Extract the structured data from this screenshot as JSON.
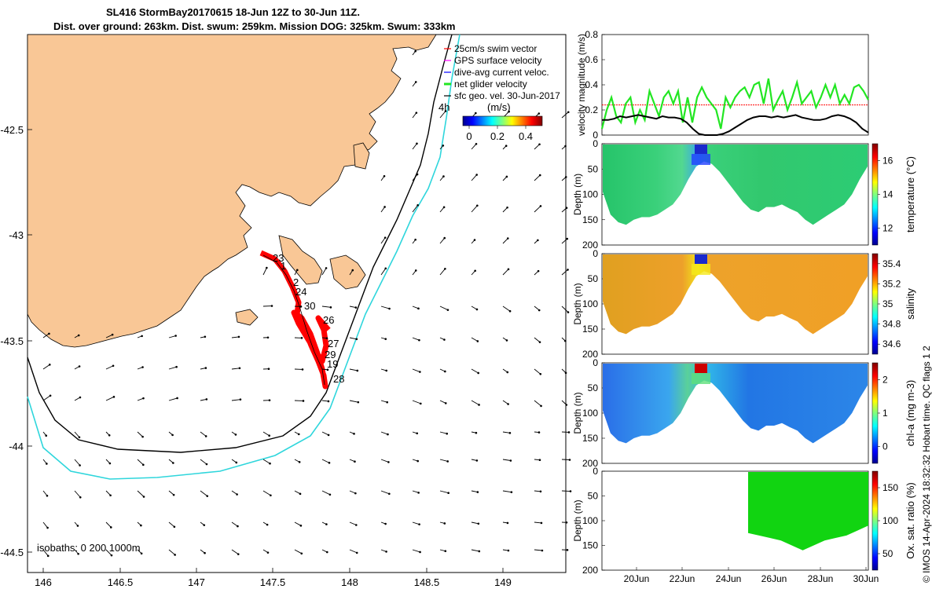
{
  "header": {
    "line1": "SL416 StormBay20170615 18-Jun 12Z to 30-Jun 11Z.",
    "line2": "Dist. over ground: 263km. Dist. swum: 259km. Mission DOG: 325km. Swum: 333km"
  },
  "side_note": "© IMOS 14-Apr-2024 18:32:32 Hobart time. QC flags 1  2",
  "colors": {
    "land": "#f9c796",
    "track": "#ff0000",
    "net_glider": "#22e622",
    "black_line": "#000000",
    "isobath_200": "#000000",
    "isobath_1000": "#2fd6dc",
    "oxygen_fill": "#11d411"
  },
  "map": {
    "x_ticks": [
      "146",
      "146.5",
      "147",
      "147.5",
      "148",
      "148.5",
      "149"
    ],
    "y_ticks": [
      "-42.5",
      "-43",
      "-43.5",
      "-44",
      "-44.5"
    ],
    "isobaths_label": "isobaths: 0   200  1000m",
    "speed_label": "4h",
    "colorbar_unit": "(m/s)",
    "colorbar_ticks": [
      "0",
      "0.2",
      "0.4"
    ],
    "legend": [
      {
        "label": "25cm/s swim vector",
        "color": "#ff0000"
      },
      {
        "label": "GPS surface velocity",
        "color": "#ff00ff"
      },
      {
        "label": "dive-avg current veloc.",
        "color": "#0000ff"
      },
      {
        "label": "net glider velocity",
        "color": "#22e622"
      },
      {
        "label": "sfc geo. vel. 30-Jun-2017",
        "color": "#000000"
      }
    ],
    "day_labels": [
      "23",
      "1",
      "2",
      "24",
      "30",
      "26",
      "27",
      "29",
      "19",
      "28"
    ]
  },
  "chart_data": [
    {
      "type": "line",
      "title": "",
      "ylabel": "velocity magnitude (m/s)",
      "ylim": [
        0,
        0.8
      ],
      "y_ticks": [
        "0",
        "0.2",
        "0.4",
        "0.6",
        "0.8"
      ],
      "x_ticks": [
        "20Jun",
        "22Jun",
        "24Jun",
        "26Jun",
        "28Jun",
        "30Jun"
      ],
      "x_range": [
        "18-Jun",
        "30-Jun"
      ],
      "series": [
        {
          "values": [
            0.05,
            0.2,
            0.3,
            0.15,
            0.1,
            0.25,
            0.3,
            0.1,
            0.2,
            0.12,
            0.35,
            0.25,
            0.15,
            0.3,
            0.35,
            0.25,
            0.35,
            0.1,
            0.3,
            0.1,
            0.3,
            0.38,
            0.3,
            0.25,
            0.2,
            0.05,
            0.3,
            0.22,
            0.3,
            0.35,
            0.38,
            0.3,
            0.4,
            0.42,
            0.25,
            0.45,
            0.2,
            0.28,
            0.35,
            0.2,
            0.3,
            0.42,
            0.25,
            0.3,
            0.35,
            0.22,
            0.3,
            0.4,
            0.3,
            0.4,
            0.25,
            0.32,
            0.25,
            0.38,
            0.4,
            0.35,
            0.28
          ]
        },
        {
          "values": [
            0.12,
            0.12,
            0.13,
            0.15,
            0.14,
            0.15,
            0.16,
            0.15,
            0.14,
            0.13,
            0.15,
            0.14,
            0.14,
            0.13,
            0.1,
            0.05,
            0.01,
            0.0,
            0.0,
            0.0,
            0.01,
            0.03,
            0.06,
            0.09,
            0.12,
            0.14,
            0.15,
            0.15,
            0.14,
            0.15,
            0.14,
            0.15,
            0.16,
            0.14,
            0.13,
            0.12,
            0.12,
            0.13,
            0.15,
            0.16,
            0.15,
            0.13,
            0.1,
            0.05,
            0.02
          ]
        },
        {
          "values": [
            0.24
          ]
        }
      ]
    },
    {
      "type": "heatmap",
      "ylabel": "Depth (m)",
      "colorbar_label": "temperature (°C)",
      "colorbar_ticks": [
        "12",
        "14",
        "16"
      ],
      "y_ticks": [
        "0",
        "50",
        "100",
        "150",
        "200"
      ],
      "depth_profile_m": [
        95,
        140,
        155,
        160,
        150,
        145,
        145,
        140,
        130,
        120,
        100,
        70,
        45,
        35,
        40,
        55,
        75,
        95,
        115,
        130,
        135,
        125,
        125,
        120,
        128,
        135,
        150,
        160,
        150,
        140,
        130,
        120,
        100,
        70,
        45
      ]
    },
    {
      "type": "heatmap",
      "ylabel": "Depth (m)",
      "colorbar_label": "salinity",
      "colorbar_ticks": [
        "34.6",
        "34.8",
        "35",
        "35.2",
        "35.4"
      ],
      "y_ticks": [
        "0",
        "50",
        "100",
        "150",
        "200"
      ],
      "depth_profile_m": [
        95,
        140,
        155,
        160,
        150,
        145,
        145,
        140,
        130,
        120,
        100,
        70,
        45,
        35,
        40,
        55,
        75,
        95,
        115,
        130,
        135,
        125,
        125,
        120,
        128,
        135,
        150,
        160,
        150,
        140,
        130,
        120,
        100,
        70,
        45
      ]
    },
    {
      "type": "heatmap",
      "ylabel": "Depth (m)",
      "colorbar_label": "chl-a (mg m-3)",
      "colorbar_ticks": [
        "0",
        "1",
        "2"
      ],
      "y_ticks": [
        "0",
        "50",
        "100",
        "150",
        "200"
      ],
      "depth_profile_m": [
        95,
        140,
        155,
        160,
        150,
        145,
        145,
        140,
        130,
        120,
        100,
        70,
        45,
        35,
        40,
        55,
        75,
        95,
        115,
        130,
        135,
        125,
        125,
        120,
        128,
        135,
        150,
        160,
        150,
        140,
        130,
        120,
        100,
        70,
        45
      ]
    },
    {
      "type": "heatmap",
      "ylabel": "Depth (m)",
      "colorbar_label": "Ox. sat. ratio (%)",
      "colorbar_ticks": [
        "50",
        "100",
        "150"
      ],
      "y_ticks": [
        "0",
        "50",
        "100",
        "150",
        "200"
      ],
      "x_ticks": [
        "20Jun",
        "22Jun",
        "24Jun",
        "26Jun",
        "28Jun",
        "30Jun"
      ],
      "depth_profile_m": [
        125,
        130,
        135,
        140,
        150,
        160,
        150,
        140,
        135,
        130,
        120,
        110
      ]
    }
  ]
}
